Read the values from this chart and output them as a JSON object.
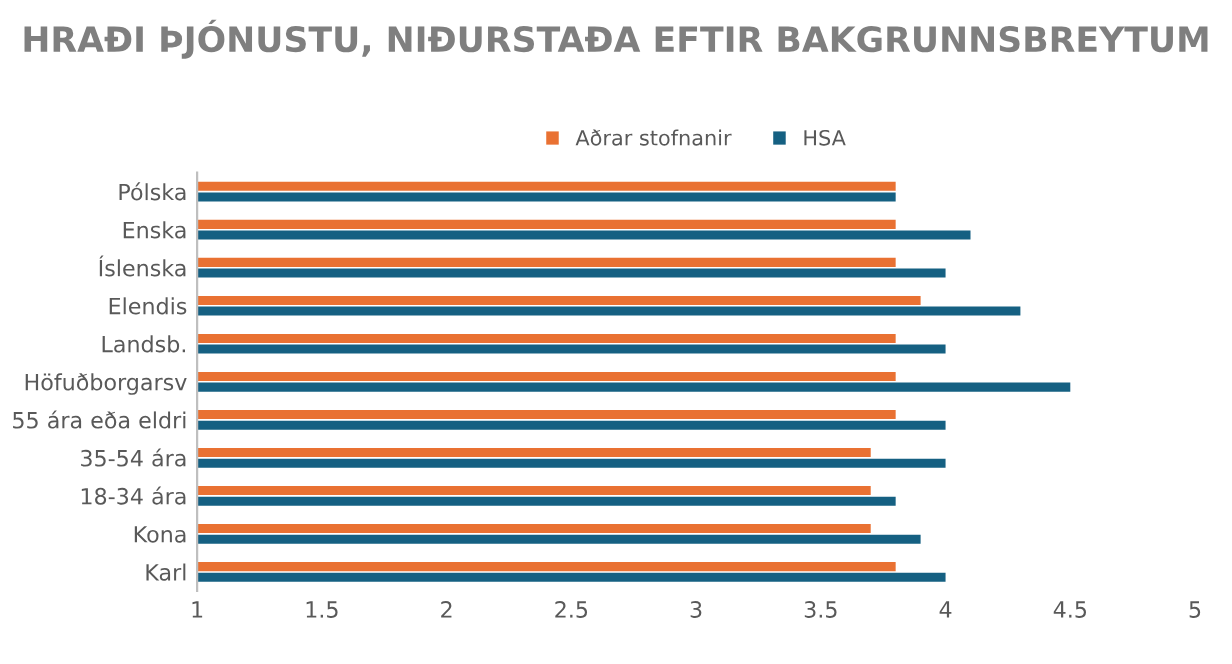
{
  "chart_data": {
    "type": "bar",
    "orientation": "horizontal",
    "title": "HRAÐI ÞJÓNUSTU, NIÐURSTAÐA EFTIR BAKGRUNNSBREYTUM",
    "categories": [
      "Pólska",
      "Enska",
      "Íslenska",
      "Elendis",
      "Landsb.",
      "Höfuðborgarsv",
      "55 ára eða eldri",
      "35-54 ára",
      "18-34 ára",
      "Kona",
      "Karl"
    ],
    "series": [
      {
        "name": "Aðrar stofnanir",
        "color": "#e97132",
        "values": [
          3.8,
          3.8,
          3.8,
          3.9,
          3.8,
          3.8,
          3.8,
          3.7,
          3.7,
          3.7,
          3.8
        ]
      },
      {
        "name": "HSA",
        "color": "#156082",
        "values": [
          3.8,
          4.1,
          4.0,
          4.3,
          4.0,
          4.5,
          4.0,
          4.0,
          3.8,
          3.9,
          4.0
        ]
      }
    ],
    "xlim": [
      1,
      5
    ],
    "xticks": [
      1,
      1.5,
      2,
      2.5,
      3,
      3.5,
      4,
      4.5,
      5
    ],
    "grid": false,
    "legend": "top"
  }
}
